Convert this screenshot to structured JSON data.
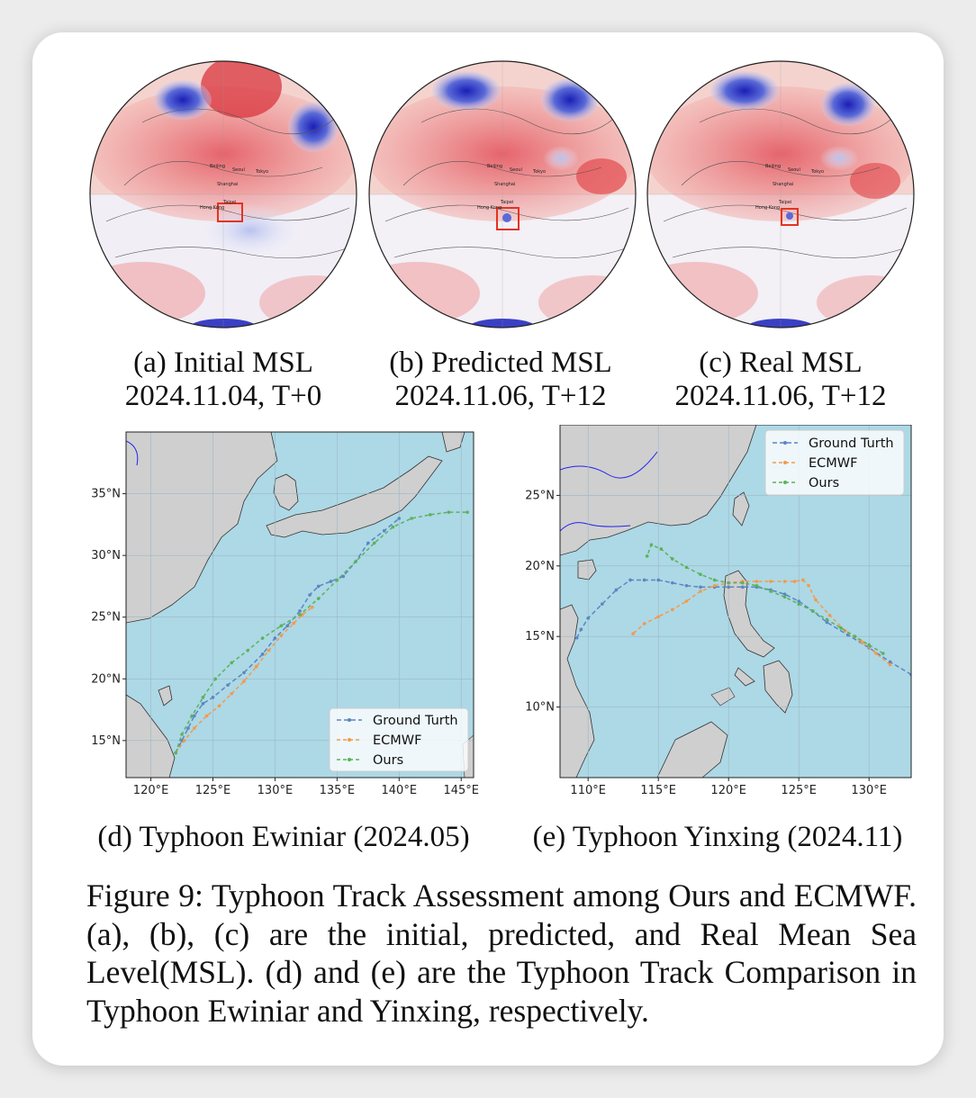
{
  "panels_top": [
    {
      "caption_line1": "(a) Initial MSL",
      "caption_line2": "2024.11.04, T+0"
    },
    {
      "caption_line1": "(b) Predicted MSL",
      "caption_line2": "2024.11.06, T+12"
    },
    {
      "caption_line1": "(c) Real MSL",
      "caption_line2": "2024.11.06, T+12"
    }
  ],
  "globe_labels": [
    "Beijing",
    "Seoul",
    "Tokyo",
    "Shanghai",
    "Taipei",
    "Hong Kong"
  ],
  "panel_d": {
    "caption": "(d) Typhoon Ewiniar (2024.05)"
  },
  "panel_e": {
    "caption": "(e) Typhoon Yinxing (2024.11)"
  },
  "figure_caption": "Figure 9: Typhoon Track Assessment among Ours and ECMWF. (a), (b), (c) are the initial, predicted, and Real Mean Sea Level(MSL). (d) and (e) are the Typhoon Track Comparison in Typhoon Ewiniar and Yinxing, respectively.",
  "colors": {
    "ground_truth": "#5b86c2",
    "ecmwf": "#f39a4b",
    "ours": "#5ab35a",
    "ocean": "#add8e6",
    "land": "#cfcfcf",
    "highlight": "#e53222"
  },
  "chart_data": [
    {
      "type": "line",
      "title": "",
      "xlabel": "",
      "ylabel": "",
      "xlim": [
        118,
        146
      ],
      "ylim": [
        12,
        40
      ],
      "x_ticks": [
        "120°E",
        "125°E",
        "130°E",
        "135°E",
        "140°E",
        "145°E"
      ],
      "y_ticks": [
        "15°N",
        "20°N",
        "25°N",
        "30°N",
        "35°N"
      ],
      "legend_position": "bottom-right",
      "series": [
        {
          "name": "Ground Turth",
          "lon": [
            122.0,
            122.5,
            123.0,
            123.5,
            124.2,
            125.0,
            126.2,
            127.5,
            129.0,
            130.0,
            131.0,
            132.0,
            132.8,
            133.5,
            134.5,
            135.5,
            136.5,
            137.5,
            138.8,
            140.0
          ],
          "lat": [
            14.0,
            15.0,
            16.0,
            17.0,
            18.0,
            18.5,
            19.5,
            20.5,
            22.0,
            23.3,
            24.3,
            25.5,
            26.8,
            27.5,
            27.9,
            28.3,
            29.5,
            31.0,
            32.0,
            33.0
          ]
        },
        {
          "name": "ECMWF",
          "lon": [
            122.0,
            122.7,
            123.5,
            124.5,
            125.5,
            126.5,
            127.5,
            128.5,
            129.5,
            130.5,
            131.5,
            132.2,
            133.0
          ],
          "lat": [
            14.0,
            15.0,
            16.0,
            17.0,
            17.8,
            18.8,
            19.8,
            21.0,
            22.3,
            23.5,
            24.5,
            25.2,
            25.8
          ]
        },
        {
          "name": "Ours",
          "lon": [
            122.0,
            122.5,
            123.3,
            124.2,
            125.2,
            126.5,
            127.8,
            129.0,
            130.5,
            132.0,
            133.5,
            135.0,
            136.5,
            138.0,
            139.5,
            141.0,
            142.5,
            144.0,
            145.5
          ],
          "lat": [
            14.0,
            15.5,
            17.0,
            18.5,
            20.0,
            21.3,
            22.3,
            23.3,
            24.3,
            25.2,
            26.5,
            28.0,
            29.5,
            31.0,
            32.3,
            33.0,
            33.3,
            33.5,
            33.5
          ]
        }
      ]
    },
    {
      "type": "line",
      "title": "",
      "xlabel": "",
      "ylabel": "",
      "xlim": [
        108,
        133
      ],
      "ylim": [
        5,
        30
      ],
      "x_ticks": [
        "110°E",
        "115°E",
        "120°E",
        "125°E",
        "130°E"
      ],
      "y_ticks": [
        "10°N",
        "15°N",
        "20°N",
        "25°N"
      ],
      "legend_position": "top-right",
      "series": [
        {
          "name": "Ground Turth",
          "lon": [
            133.0,
            131.5,
            130.0,
            128.5,
            127.0,
            126.0,
            125.0,
            124.0,
            123.0,
            122.0,
            121.0,
            120.0,
            119.0,
            118.0,
            117.0,
            116.0,
            115.0,
            114.0,
            113.0,
            112.0,
            111.0,
            110.0,
            109.5,
            109.2
          ],
          "lat": [
            12.3,
            13.2,
            14.2,
            15.1,
            16.0,
            16.8,
            17.5,
            18.0,
            18.3,
            18.5,
            18.5,
            18.5,
            18.5,
            18.5,
            18.6,
            18.8,
            19.0,
            19.0,
            19.0,
            18.3,
            17.3,
            16.3,
            15.5,
            14.9
          ]
        },
        {
          "name": "ECMWF",
          "lon": [
            131.5,
            130.5,
            129.5,
            128.3,
            127.2,
            126.2,
            125.7,
            125.3,
            124.7,
            124.0,
            123.0,
            122.0,
            121.0,
            120.0,
            119.0,
            118.0,
            117.0,
            116.0,
            115.0,
            114.0,
            113.2
          ],
          "lat": [
            13.0,
            13.8,
            14.6,
            15.4,
            16.5,
            17.6,
            18.6,
            19.0,
            18.9,
            18.9,
            18.9,
            18.9,
            18.9,
            18.8,
            18.6,
            18.2,
            17.5,
            16.9,
            16.4,
            15.9,
            15.2
          ]
        },
        {
          "name": "Ours",
          "lon": [
            131.0,
            130.0,
            129.0,
            128.0,
            127.0,
            126.0,
            125.0,
            124.0,
            123.0,
            122.0,
            121.0,
            120.0,
            119.0,
            118.0,
            117.0,
            116.0,
            115.2,
            114.5,
            114.2
          ],
          "lat": [
            13.8,
            14.4,
            15.0,
            15.6,
            16.2,
            16.8,
            17.3,
            17.8,
            18.2,
            18.6,
            18.8,
            18.8,
            19.0,
            19.4,
            19.9,
            20.5,
            21.2,
            21.5,
            20.7
          ]
        }
      ]
    }
  ]
}
